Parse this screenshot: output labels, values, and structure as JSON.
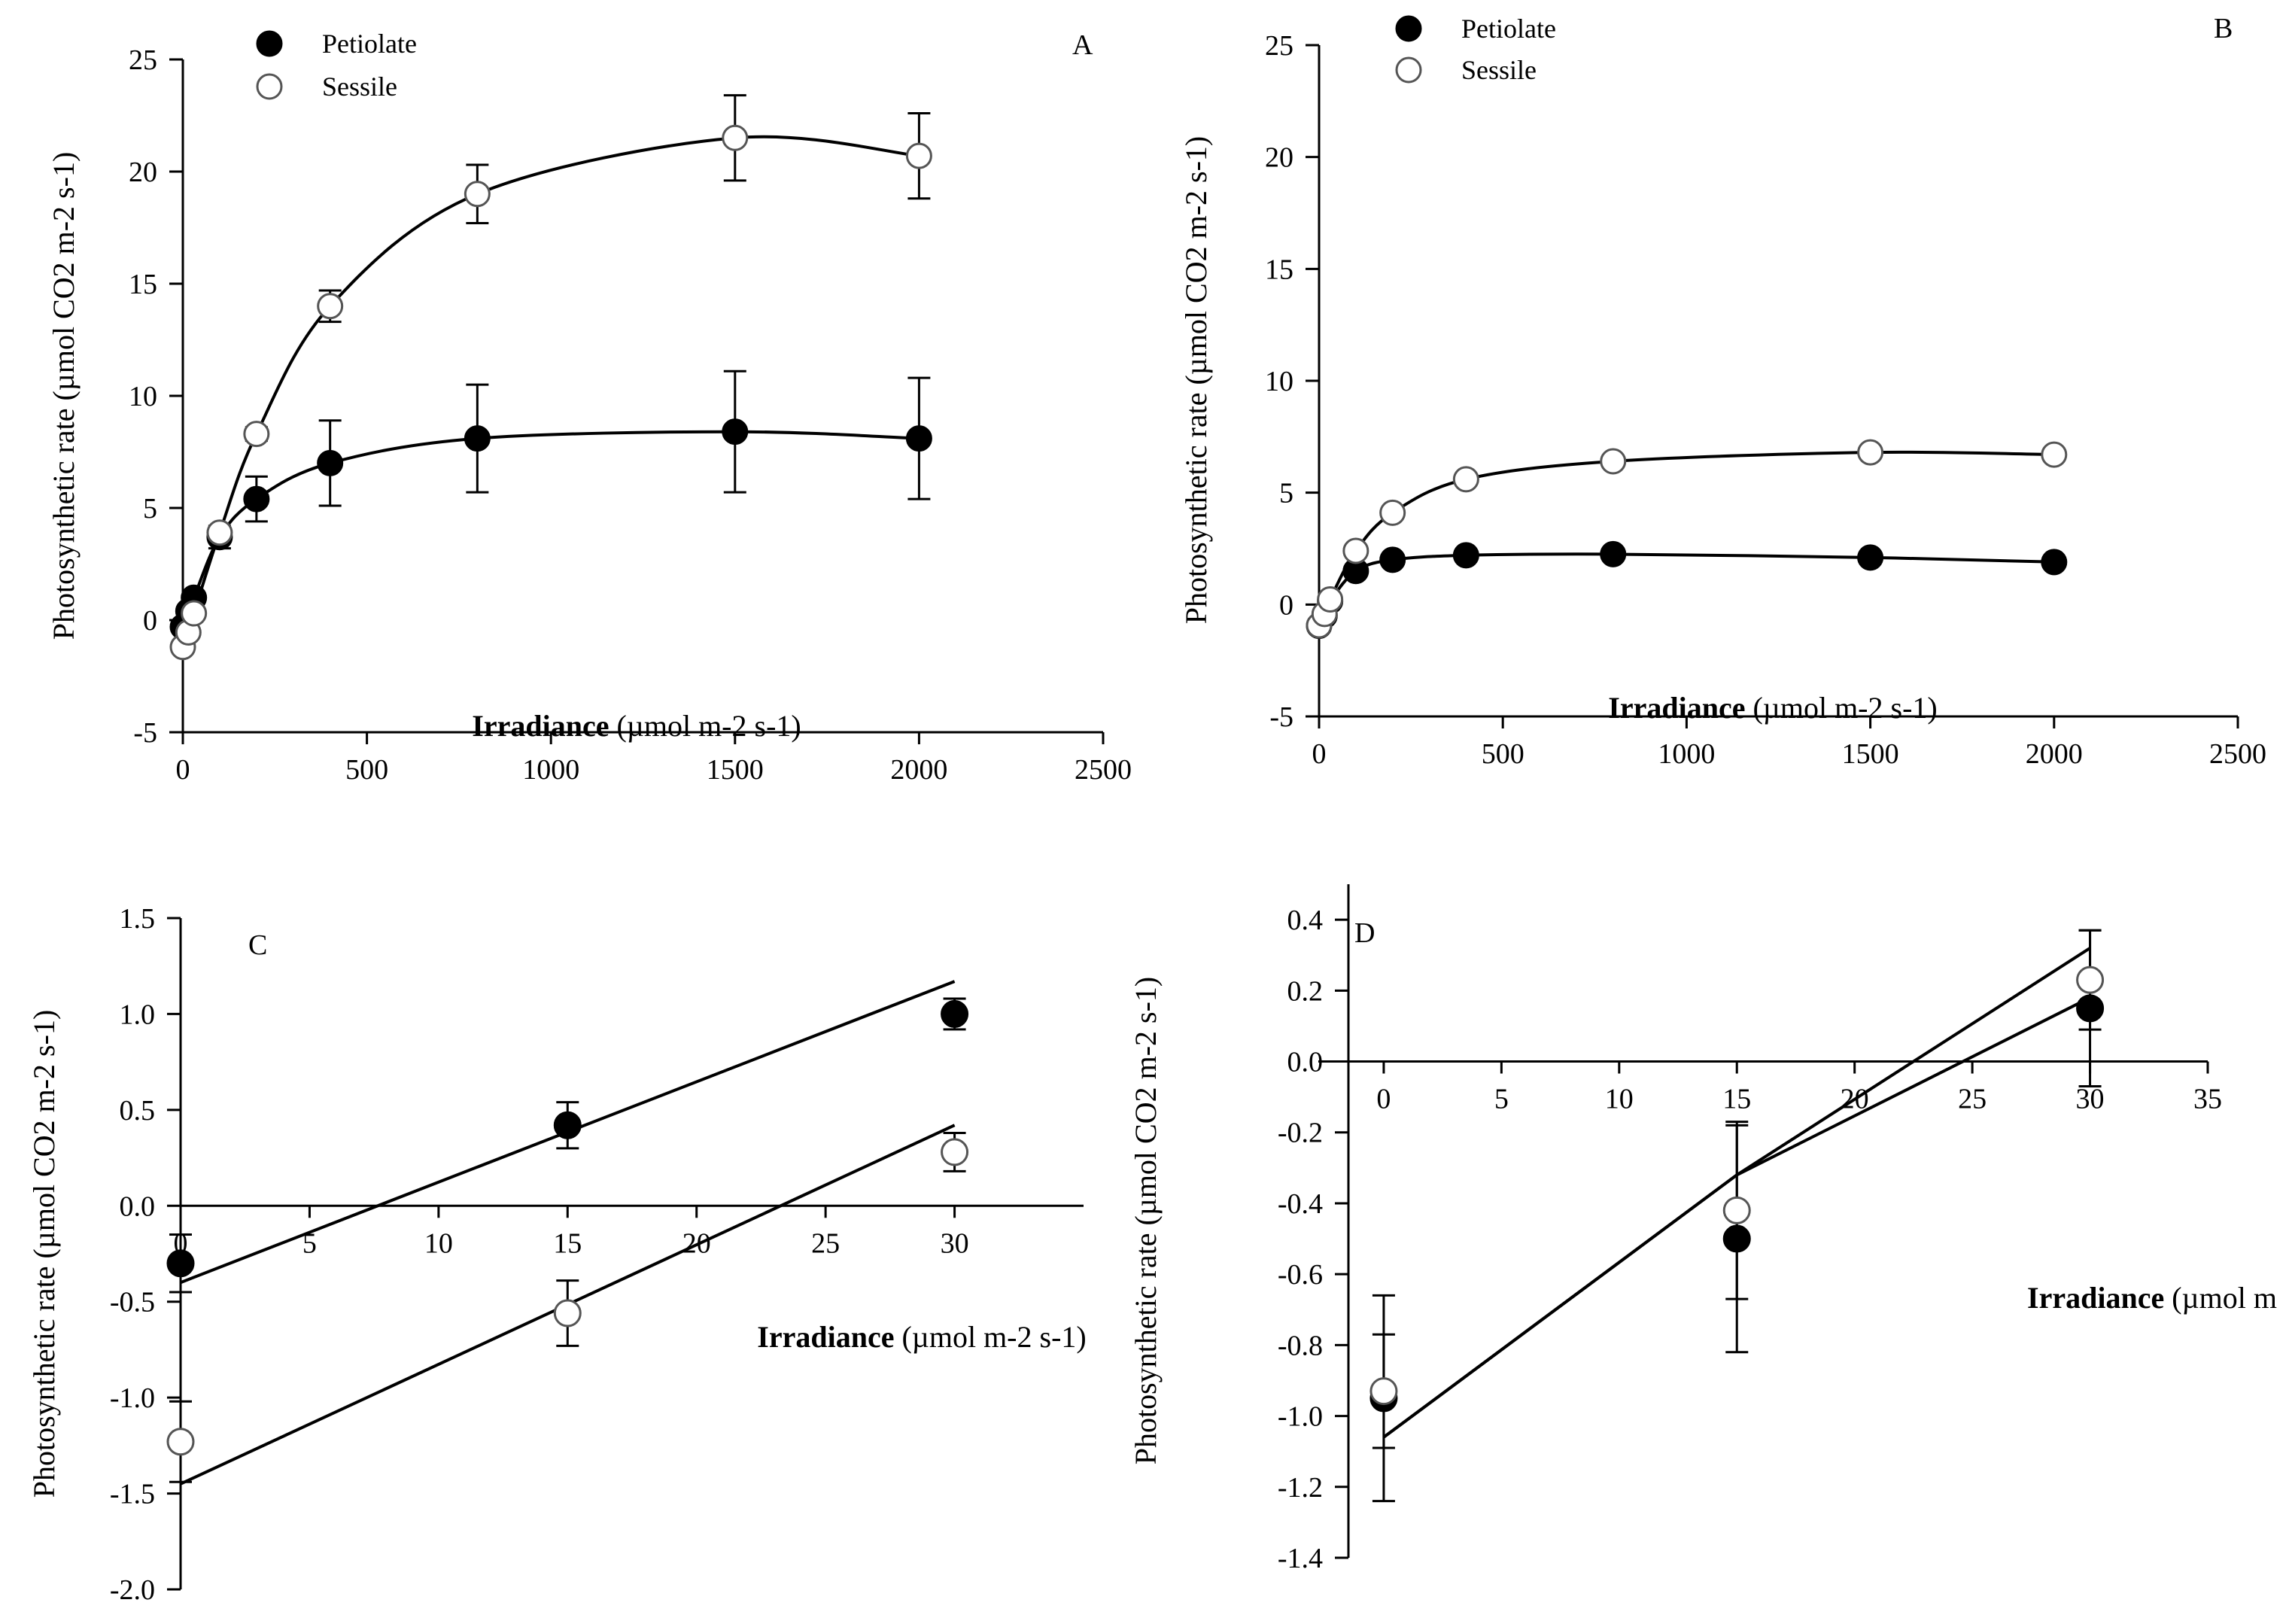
{
  "chart_data": [
    {
      "panel": "A",
      "type": "scatter",
      "xlabel": "Irradiance (µmol m-2 s-1)",
      "ylabel": "Photosynthetic rate (µmol CO2 m-2 s-1)",
      "xlim": [
        0,
        2500
      ],
      "ylim": [
        -5,
        25
      ],
      "xticks": [
        "0",
        "500",
        "1000",
        "1500",
        "2000",
        "2500"
      ],
      "yticks": [
        "-5",
        "0",
        "5",
        "10",
        "15",
        "20",
        "25"
      ],
      "legend": [
        "Petiolate",
        "Sessile"
      ],
      "legend_position": "top-left",
      "series": [
        {
          "name": "Petiolate",
          "marker": "filled-circle",
          "x": [
            0,
            15,
            30,
            100,
            200,
            400,
            800,
            1500,
            2000
          ],
          "y": [
            -0.3,
            0.4,
            1.0,
            3.7,
            5.4,
            7.0,
            8.1,
            8.4,
            8.1
          ],
          "err": [
            0.2,
            0.15,
            0.1,
            0.5,
            1.0,
            1.9,
            2.4,
            2.7,
            2.7
          ],
          "fit": "saturating curve"
        },
        {
          "name": "Sessile",
          "marker": "open-circle",
          "x": [
            0,
            15,
            30,
            100,
            200,
            400,
            800,
            1500,
            2000
          ],
          "y": [
            -1.2,
            -0.55,
            0.3,
            3.9,
            8.3,
            14.0,
            19.0,
            21.5,
            20.7
          ],
          "err": [
            0.2,
            0.15,
            0.1,
            0.3,
            0.3,
            0.7,
            1.3,
            1.9,
            1.9
          ],
          "fit": "saturating curve"
        }
      ]
    },
    {
      "panel": "B",
      "type": "scatter",
      "xlabel": "Irradiance (µmol m-2 s-1)",
      "ylabel": "Photosynthetic rate (µmol CO2 m-2 s-1)",
      "xlim": [
        0,
        2500
      ],
      "ylim": [
        -5,
        25
      ],
      "xticks": [
        "0",
        "500",
        "1000",
        "1500",
        "2000",
        "2500"
      ],
      "yticks": [
        "-5",
        "0",
        "5",
        "10",
        "15",
        "20",
        "25"
      ],
      "legend": [
        "Petiolate",
        "Sessile"
      ],
      "legend_position": "top-left",
      "series": [
        {
          "name": "Petiolate",
          "marker": "filled-circle",
          "x": [
            0,
            15,
            30,
            100,
            200,
            400,
            800,
            1500,
            2000
          ],
          "y": [
            -0.95,
            -0.5,
            0.15,
            1.5,
            2.0,
            2.2,
            2.25,
            2.1,
            1.9
          ],
          "fit": "saturating curve"
        },
        {
          "name": "Sessile",
          "marker": "open-circle",
          "x": [
            0,
            15,
            30,
            100,
            200,
            400,
            800,
            1500,
            2000
          ],
          "y": [
            -0.93,
            -0.42,
            0.23,
            2.4,
            4.1,
            5.6,
            6.4,
            6.8,
            6.7
          ],
          "fit": "saturating curve"
        }
      ]
    },
    {
      "panel": "C",
      "type": "scatter",
      "xlabel": "Irradiance (µmol m-2 s-1)",
      "ylabel": "Photosynthetic rate (µmol CO2 m-2 s-1)",
      "xlim": [
        0,
        35
      ],
      "ylim": [
        -2.0,
        1.5
      ],
      "xticks": [
        "0",
        "5",
        "10",
        "15",
        "20",
        "25",
        "30"
      ],
      "yticks": [
        "-2.0",
        "-1.5",
        "-1.0",
        "-0.5",
        "0.0",
        "0.5",
        "1.0",
        "1.5"
      ],
      "series": [
        {
          "name": "Petiolate",
          "marker": "filled-circle",
          "x": [
            0,
            15,
            30
          ],
          "y": [
            -0.3,
            0.42,
            1.0
          ],
          "err": [
            0.15,
            0.12,
            0.08
          ],
          "fit_line": [
            [
              0,
              -0.4
            ],
            [
              30,
              1.17
            ]
          ]
        },
        {
          "name": "Sessile",
          "marker": "open-circle",
          "x": [
            0,
            15,
            30
          ],
          "y": [
            -1.23,
            -0.56,
            0.28
          ],
          "err": [
            0.21,
            0.17,
            0.1
          ],
          "fit_line": [
            [
              0,
              -1.45
            ],
            [
              30,
              0.42
            ]
          ]
        }
      ]
    },
    {
      "panel": "D",
      "type": "scatter",
      "xlabel": "Irradiance (µmol m",
      "ylabel": "Photosynthetic rate (µmol CO2 m-2 s-1)",
      "xlim": [
        -1.5,
        35
      ],
      "ylim": [
        -1.4,
        0.5
      ],
      "xticks": [
        "0",
        "5",
        "10",
        "15",
        "20",
        "25",
        "30",
        "35"
      ],
      "yticks": [
        "-1.4",
        "-1.2",
        "-1.0",
        "-0.8",
        "-0.6",
        "-0.4",
        "-0.2",
        "0.0",
        "0.2",
        "0.4"
      ],
      "series": [
        {
          "name": "Petiolate",
          "marker": "filled-circle",
          "x": [
            0,
            15,
            30
          ],
          "y": [
            -0.95,
            -0.5,
            0.15
          ],
          "err": [
            0.29,
            0.32,
            0.22
          ],
          "fit_line": [
            [
              0,
              -1.06
            ],
            [
              15,
              -0.32
            ],
            [
              30,
              0.18
            ]
          ]
        },
        {
          "name": "Sessile",
          "marker": "open-circle",
          "x": [
            0,
            15,
            30
          ],
          "y": [
            -0.93,
            -0.42,
            0.23
          ],
          "err": [
            0.16,
            0.25,
            0.14
          ],
          "fit_line": [
            [
              0,
              -1.06
            ],
            [
              15,
              -0.32
            ],
            [
              30,
              0.32
            ]
          ]
        }
      ]
    }
  ]
}
